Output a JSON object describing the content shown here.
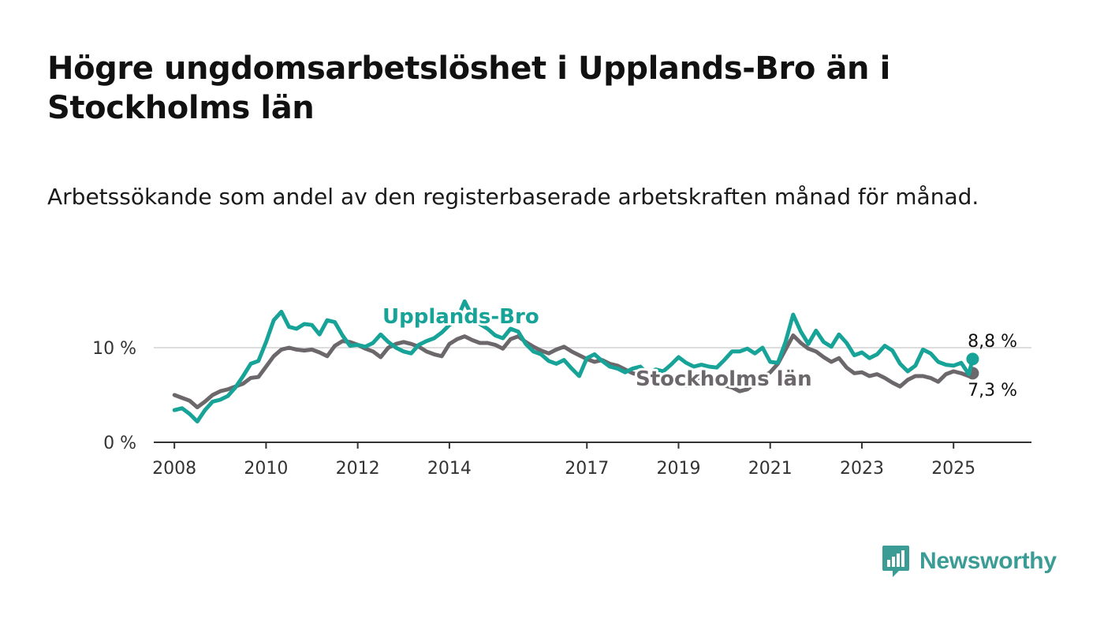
{
  "title": "Högre ungdomsarbetslöshet i Upplands-Bro än i Stockholms län",
  "subtitle": "Arbetssökande som andel av den registerbaserade arbetskraften månad för månad.",
  "brand": {
    "name": "Newsworthy",
    "color": "#3a9c94",
    "icon": "newsworthy-logo-icon"
  },
  "chart_data": {
    "type": "line",
    "xlabel": "",
    "ylabel": "",
    "ylim": [
      0,
      15
    ],
    "y_ticks": [
      {
        "value": 0,
        "label": "0 %"
      },
      {
        "value": 10,
        "label": "10 %"
      }
    ],
    "x_ticks": [
      "2008",
      "2010",
      "2012",
      "2014",
      "2017",
      "2019",
      "2021",
      "2023",
      "2025"
    ],
    "grid": "horizontal at 10 %",
    "legend": "inline labels",
    "series": [
      {
        "name": "Stockholms län",
        "color": "#6b676b",
        "end_label": "7,3 %",
        "points": [
          [
            "2008-01",
            5.0
          ],
          [
            "2008-03",
            4.7
          ],
          [
            "2008-05",
            4.4
          ],
          [
            "2008-07",
            3.7
          ],
          [
            "2008-09",
            4.3
          ],
          [
            "2008-11",
            5.0
          ],
          [
            "2009-01",
            5.4
          ],
          [
            "2009-03",
            5.6
          ],
          [
            "2009-05",
            5.9
          ],
          [
            "2009-07",
            6.2
          ],
          [
            "2009-09",
            6.8
          ],
          [
            "2009-11",
            6.9
          ],
          [
            "2010-01",
            8.0
          ],
          [
            "2010-03",
            9.1
          ],
          [
            "2010-05",
            9.8
          ],
          [
            "2010-07",
            10.0
          ],
          [
            "2010-09",
            9.8
          ],
          [
            "2010-11",
            9.7
          ],
          [
            "2011-01",
            9.8
          ],
          [
            "2011-03",
            9.5
          ],
          [
            "2011-05",
            9.1
          ],
          [
            "2011-07",
            10.2
          ],
          [
            "2011-09",
            10.7
          ],
          [
            "2011-11",
            10.6
          ],
          [
            "2012-01",
            10.3
          ],
          [
            "2012-03",
            9.9
          ],
          [
            "2012-05",
            9.6
          ],
          [
            "2012-07",
            9.0
          ],
          [
            "2012-09",
            10.0
          ],
          [
            "2012-11",
            10.4
          ],
          [
            "2013-01",
            10.6
          ],
          [
            "2013-03",
            10.4
          ],
          [
            "2013-05",
            10.1
          ],
          [
            "2013-07",
            9.6
          ],
          [
            "2013-09",
            9.3
          ],
          [
            "2013-11",
            9.1
          ],
          [
            "2014-01",
            10.4
          ],
          [
            "2014-03",
            10.9
          ],
          [
            "2014-05",
            11.2
          ],
          [
            "2014-07",
            10.8
          ],
          [
            "2014-09",
            10.5
          ],
          [
            "2014-11",
            10.5
          ],
          [
            "2015-01",
            10.3
          ],
          [
            "2015-03",
            9.9
          ],
          [
            "2015-05",
            10.9
          ],
          [
            "2015-07",
            11.2
          ],
          [
            "2015-09",
            10.6
          ],
          [
            "2015-11",
            10.1
          ],
          [
            "2016-01",
            9.7
          ],
          [
            "2016-03",
            9.4
          ],
          [
            "2016-05",
            9.8
          ],
          [
            "2016-07",
            10.1
          ],
          [
            "2016-09",
            9.6
          ],
          [
            "2016-11",
            9.2
          ],
          [
            "2017-01",
            8.8
          ],
          [
            "2017-03",
            8.5
          ],
          [
            "2017-05",
            8.7
          ],
          [
            "2017-07",
            8.3
          ],
          [
            "2017-09",
            8.1
          ],
          [
            "2017-11",
            7.7
          ],
          [
            "2018-01",
            7.3
          ],
          [
            "2018-03",
            7.1
          ],
          [
            "2018-05",
            7.4
          ],
          [
            "2018-07",
            7.2
          ],
          [
            "2018-09",
            6.8
          ],
          [
            "2018-11",
            6.6
          ],
          [
            "2019-01",
            6.3
          ],
          [
            "2019-03",
            6.0
          ],
          [
            "2019-05",
            6.5
          ],
          [
            "2019-07",
            7.0
          ],
          [
            "2019-09",
            6.9
          ],
          [
            "2019-11",
            6.4
          ],
          [
            "2020-01",
            6.0
          ],
          [
            "2020-03",
            5.8
          ],
          [
            "2020-05",
            5.4
          ],
          [
            "2020-07",
            5.6
          ],
          [
            "2020-09",
            6.2
          ],
          [
            "2020-11",
            6.9
          ],
          [
            "2021-01",
            7.4
          ],
          [
            "2021-03",
            8.3
          ],
          [
            "2021-05",
            9.8
          ],
          [
            "2021-07",
            11.3
          ],
          [
            "2021-09",
            10.5
          ],
          [
            "2021-11",
            9.9
          ],
          [
            "2022-01",
            9.6
          ],
          [
            "2022-03",
            9.0
          ],
          [
            "2022-05",
            8.5
          ],
          [
            "2022-07",
            8.9
          ],
          [
            "2022-09",
            7.9
          ],
          [
            "2022-11",
            7.3
          ],
          [
            "2023-01",
            7.4
          ],
          [
            "2023-03",
            7.0
          ],
          [
            "2023-05",
            7.2
          ],
          [
            "2023-07",
            6.8
          ],
          [
            "2023-09",
            6.3
          ],
          [
            "2023-11",
            5.9
          ],
          [
            "2024-01",
            6.6
          ],
          [
            "2024-03",
            7.0
          ],
          [
            "2024-05",
            7.0
          ],
          [
            "2024-07",
            6.8
          ],
          [
            "2024-09",
            6.4
          ],
          [
            "2024-11",
            7.2
          ],
          [
            "2025-01",
            7.5
          ],
          [
            "2025-03",
            7.3
          ],
          [
            "2025-05",
            7.0
          ],
          [
            "2025-06",
            7.3
          ]
        ]
      },
      {
        "name": "Upplands-Bro",
        "color": "#17a397",
        "end_label": "8,8 %",
        "points": [
          [
            "2008-01",
            3.4
          ],
          [
            "2008-03",
            3.6
          ],
          [
            "2008-05",
            3.0
          ],
          [
            "2008-07",
            2.2
          ],
          [
            "2008-09",
            3.4
          ],
          [
            "2008-11",
            4.3
          ],
          [
            "2009-01",
            4.5
          ],
          [
            "2009-03",
            4.9
          ],
          [
            "2009-05",
            5.8
          ],
          [
            "2009-07",
            7.0
          ],
          [
            "2009-09",
            8.3
          ],
          [
            "2009-11",
            8.6
          ],
          [
            "2010-01",
            10.6
          ],
          [
            "2010-03",
            12.9
          ],
          [
            "2010-05",
            13.8
          ],
          [
            "2010-07",
            12.2
          ],
          [
            "2010-09",
            12.0
          ],
          [
            "2010-11",
            12.5
          ],
          [
            "2011-01",
            12.4
          ],
          [
            "2011-03",
            11.4
          ],
          [
            "2011-05",
            12.9
          ],
          [
            "2011-07",
            12.7
          ],
          [
            "2011-09",
            11.3
          ],
          [
            "2011-11",
            10.2
          ],
          [
            "2012-01",
            10.3
          ],
          [
            "2012-03",
            10.1
          ],
          [
            "2012-05",
            10.5
          ],
          [
            "2012-07",
            11.4
          ],
          [
            "2012-09",
            10.6
          ],
          [
            "2012-11",
            10.0
          ],
          [
            "2013-01",
            9.6
          ],
          [
            "2013-03",
            9.4
          ],
          [
            "2013-05",
            10.3
          ],
          [
            "2013-07",
            10.7
          ],
          [
            "2013-09",
            11.0
          ],
          [
            "2013-11",
            11.6
          ],
          [
            "2014-01",
            12.4
          ],
          [
            "2014-03",
            13.0
          ],
          [
            "2014-05",
            14.9
          ],
          [
            "2014-07",
            13.3
          ],
          [
            "2014-09",
            12.5
          ],
          [
            "2014-11",
            12.0
          ],
          [
            "2015-01",
            11.3
          ],
          [
            "2015-03",
            11.0
          ],
          [
            "2015-05",
            12.0
          ],
          [
            "2015-07",
            11.7
          ],
          [
            "2015-09",
            10.4
          ],
          [
            "2015-11",
            9.6
          ],
          [
            "2016-01",
            9.3
          ],
          [
            "2016-03",
            8.6
          ],
          [
            "2016-05",
            8.3
          ],
          [
            "2016-07",
            8.7
          ],
          [
            "2016-09",
            7.8
          ],
          [
            "2016-11",
            7.0
          ],
          [
            "2017-01",
            8.9
          ],
          [
            "2017-03",
            9.3
          ],
          [
            "2017-05",
            8.6
          ],
          [
            "2017-07",
            8.0
          ],
          [
            "2017-09",
            7.8
          ],
          [
            "2017-11",
            7.4
          ],
          [
            "2018-01",
            7.8
          ],
          [
            "2018-03",
            8.0
          ],
          [
            "2018-05",
            7.2
          ],
          [
            "2018-07",
            7.7
          ],
          [
            "2018-09",
            7.5
          ],
          [
            "2018-11",
            8.2
          ],
          [
            "2019-01",
            9.0
          ],
          [
            "2019-03",
            8.4
          ],
          [
            "2019-05",
            8.0
          ],
          [
            "2019-07",
            8.2
          ],
          [
            "2019-09",
            8.0
          ],
          [
            "2019-11",
            7.9
          ],
          [
            "2020-01",
            8.7
          ],
          [
            "2020-03",
            9.6
          ],
          [
            "2020-05",
            9.6
          ],
          [
            "2020-07",
            9.9
          ],
          [
            "2020-09",
            9.4
          ],
          [
            "2020-11",
            10.0
          ],
          [
            "2021-01",
            8.5
          ],
          [
            "2021-03",
            8.4
          ],
          [
            "2021-05",
            10.6
          ],
          [
            "2021-07",
            13.5
          ],
          [
            "2021-09",
            11.7
          ],
          [
            "2021-11",
            10.4
          ],
          [
            "2022-01",
            11.8
          ],
          [
            "2022-03",
            10.6
          ],
          [
            "2022-05",
            10.1
          ],
          [
            "2022-07",
            11.4
          ],
          [
            "2022-09",
            10.5
          ],
          [
            "2022-11",
            9.2
          ],
          [
            "2023-01",
            9.5
          ],
          [
            "2023-03",
            8.9
          ],
          [
            "2023-05",
            9.3
          ],
          [
            "2023-07",
            10.2
          ],
          [
            "2023-09",
            9.7
          ],
          [
            "2023-11",
            8.3
          ],
          [
            "2024-01",
            7.5
          ],
          [
            "2024-03",
            8.1
          ],
          [
            "2024-05",
            9.8
          ],
          [
            "2024-07",
            9.4
          ],
          [
            "2024-09",
            8.5
          ],
          [
            "2024-11",
            8.2
          ],
          [
            "2025-01",
            8.1
          ],
          [
            "2025-03",
            8.4
          ],
          [
            "2025-05",
            7.2
          ],
          [
            "2025-06",
            8.8
          ]
        ]
      }
    ]
  }
}
